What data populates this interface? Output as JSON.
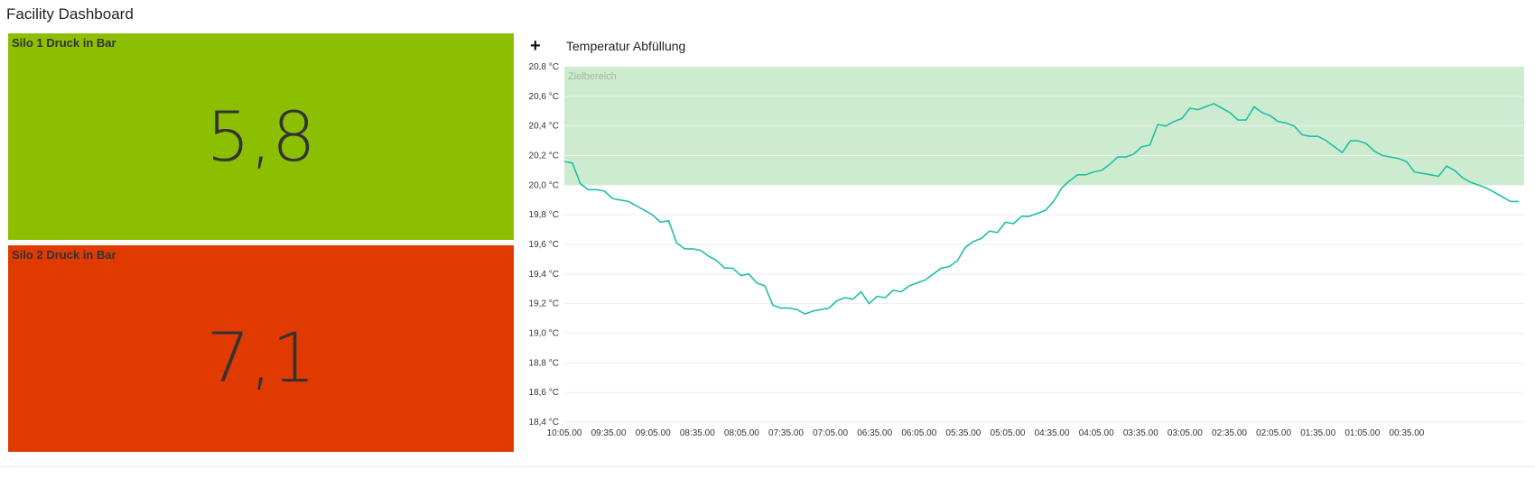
{
  "header": {
    "title": "Facility Dashboard"
  },
  "tiles": [
    {
      "label": "Silo 1 Druck in Bar",
      "value": "5,8",
      "color": "#8cbf00"
    },
    {
      "label": "Silo 2 Druck in Bar",
      "value": "7,1",
      "color": "#e03a00"
    }
  ],
  "chart_header": {
    "expand_icon": "plus-icon",
    "title": "Temperatur Abfüllung"
  },
  "chart_data": {
    "type": "line",
    "title": "Temperatur Abfüllung",
    "xlabel": "",
    "ylabel": "",
    "unit": "°C",
    "ylim": [
      18.4,
      20.8
    ],
    "y_ticks": [
      "20,8 °C",
      "20,6 °C",
      "20,4 °C",
      "20,2 °C",
      "20,0 °C",
      "19,8 °C",
      "19,6 °C",
      "19,4 °C",
      "19,2 °C",
      "19,0 °C",
      "18,8 °C",
      "18,6 °C",
      "18,4 °C"
    ],
    "x_ticks": [
      "10:05.00",
      "09:35.00",
      "09:05.00",
      "08:35.00",
      "08:05.00",
      "07:35.00",
      "07:05.00",
      "06:35.00",
      "06:05.00",
      "05:35.00",
      "05:05.00",
      "04:35.00",
      "04:05.00",
      "03:35.00",
      "03:05.00",
      "02:35.00",
      "02:05.00",
      "01:35.00",
      "01:05.00",
      "00:35.00"
    ],
    "grid": true,
    "band": {
      "label": "Zielbereich",
      "from": 20.0,
      "to": 20.8,
      "color": "#cdeccf"
    },
    "series": [
      {
        "color": "#1fbfa8",
        "values": [
          20.16,
          20.15,
          20.01,
          19.97,
          19.97,
          19.96,
          19.91,
          19.9,
          19.89,
          19.86,
          19.83,
          19.8,
          19.75,
          19.76,
          19.61,
          19.57,
          19.57,
          19.56,
          19.52,
          19.49,
          19.44,
          19.44,
          19.39,
          19.4,
          19.34,
          19.32,
          19.19,
          19.17,
          19.17,
          19.16,
          19.13,
          19.15,
          19.16,
          19.17,
          19.22,
          19.24,
          19.23,
          19.28,
          19.2,
          19.25,
          19.24,
          19.29,
          19.28,
          19.32,
          19.34,
          19.36,
          19.4,
          19.44,
          19.45,
          19.49,
          19.58,
          19.62,
          19.64,
          19.69,
          19.68,
          19.75,
          19.74,
          19.79,
          19.79,
          19.81,
          19.83,
          19.89,
          19.98,
          20.03,
          20.07,
          20.07,
          20.09,
          20.1,
          20.14,
          20.19,
          20.19,
          20.21,
          20.26,
          20.27,
          20.41,
          20.4,
          20.43,
          20.45,
          20.52,
          20.51,
          20.53,
          20.55,
          20.52,
          20.49,
          20.44,
          20.44,
          20.53,
          20.49,
          20.47,
          20.43,
          20.42,
          20.4,
          20.34,
          20.33,
          20.33,
          20.3,
          20.26,
          20.22,
          20.3,
          20.3,
          20.28,
          20.23,
          20.2,
          20.19,
          20.18,
          20.16,
          20.09,
          20.08,
          20.07,
          20.06,
          20.13,
          20.1,
          20.05,
          20.02,
          20.0,
          19.98,
          19.95,
          19.92,
          19.89,
          19.89
        ]
      }
    ]
  }
}
